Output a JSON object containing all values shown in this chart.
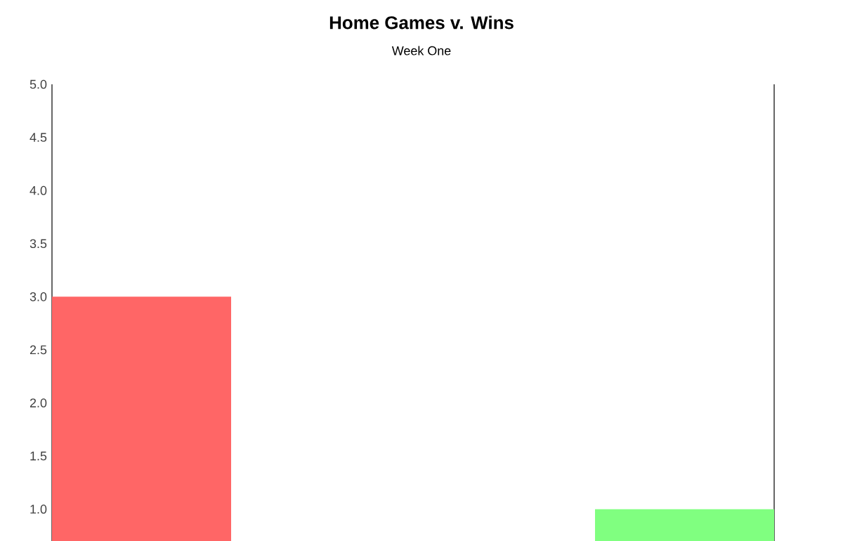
{
  "chart_data": {
    "type": "bar",
    "title": "Home Games v. Wins",
    "subtitle": "Week One",
    "categories": [
      null,
      null
    ],
    "values": [
      3.0,
      1.0
    ],
    "colors": [
      "#ff6666",
      "#80ff80"
    ],
    "ylim": [
      0.7,
      5.0
    ],
    "yticks": [
      {
        "value": 1.0,
        "label": "1.0"
      },
      {
        "value": 1.5,
        "label": "1.5"
      },
      {
        "value": 2.0,
        "label": "2.0"
      },
      {
        "value": 2.5,
        "label": "2.5"
      },
      {
        "value": 3.0,
        "label": "3.0"
      },
      {
        "value": 3.5,
        "label": "3.5"
      },
      {
        "value": 4.0,
        "label": "4.0"
      },
      {
        "value": 4.5,
        "label": "4.5"
      },
      {
        "value": 5.0,
        "label": "5.0"
      }
    ],
    "tick_labels": "y"
  }
}
